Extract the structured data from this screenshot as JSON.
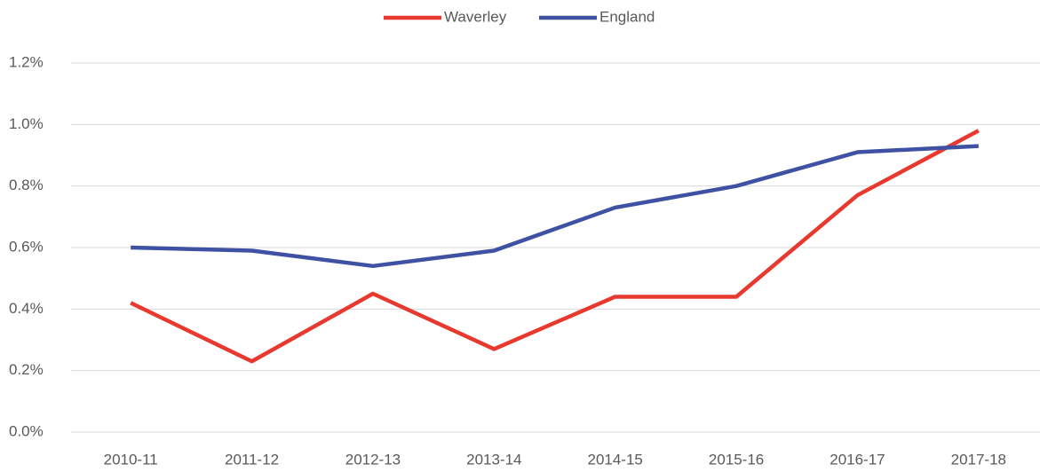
{
  "chart_data": {
    "type": "line",
    "categories": [
      "2010-11",
      "2011-12",
      "2012-13",
      "2013-14",
      "2014-15",
      "2015-16",
      "2016-17",
      "2017-18"
    ],
    "series": [
      {
        "name": "Waverley",
        "color": "#e8392f",
        "values": [
          0.42,
          0.23,
          0.45,
          0.27,
          0.44,
          0.44,
          0.77,
          0.98
        ]
      },
      {
        "name": "England",
        "color": "#3f51a3",
        "values": [
          0.6,
          0.59,
          0.54,
          0.59,
          0.73,
          0.8,
          0.91,
          0.93
        ]
      }
    ],
    "ylim": [
      0,
      1.2
    ],
    "yticks": [
      {
        "value": 0,
        "label": "0.0%"
      },
      {
        "value": 0.2,
        "label": "0.2%"
      },
      {
        "value": 0.4,
        "label": "0.4%"
      },
      {
        "value": 0.6,
        "label": "0.6%"
      },
      {
        "value": 0.8,
        "label": "0.8%"
      },
      {
        "value": 1.0,
        "label": "1.0%"
      },
      {
        "value": 1.2,
        "label": "1.2%"
      }
    ],
    "grid": true,
    "legend": "top"
  }
}
